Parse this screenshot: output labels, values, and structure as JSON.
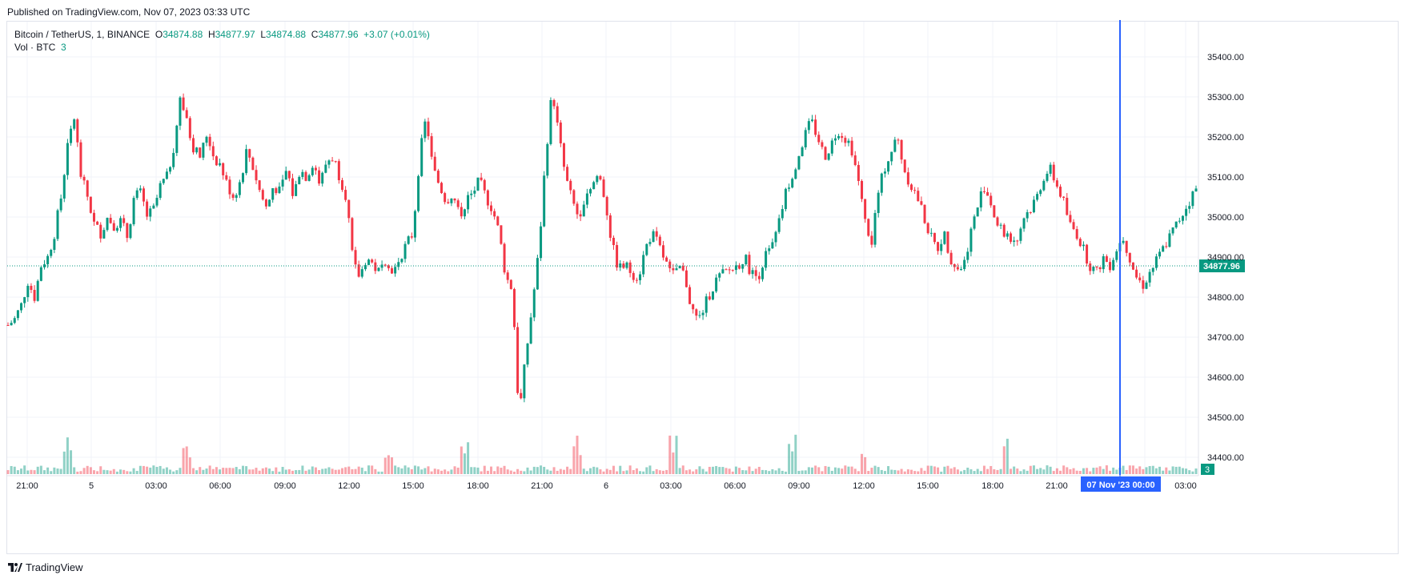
{
  "published": "Published on TradingView.com, Nov 07, 2023 03:33 UTC",
  "legend": {
    "symbol": "Bitcoin / TetherUS, 1, BINANCE",
    "o_label": "O",
    "o_value": "34874.88",
    "h_label": "H",
    "h_value": "34877.97",
    "l_label": "L",
    "l_value": "34874.88",
    "c_label": "C",
    "c_value": "34877.96",
    "change": "+3.07 (+0.01%)",
    "vol_label": "Vol · BTC",
    "vol_value": "3"
  },
  "footer": {
    "brand": "TradingView"
  },
  "colors": {
    "up": "#089981",
    "down": "#f23645",
    "crosshair": "#2962ff",
    "grid": "#f0f3fa"
  },
  "chart_data": {
    "type": "candlestick",
    "title": "Bitcoin / TetherUS, 1, BINANCE",
    "ylim": [
      34350,
      35450
    ],
    "y_ticks": [
      "35400.00",
      "35300.00",
      "35200.00",
      "35100.00",
      "35000.00",
      "34900.00",
      "34800.00",
      "34700.00",
      "34600.00",
      "34500.00",
      "34400.00"
    ],
    "x_ticks": [
      "21:00",
      "5",
      "03:00",
      "06:00",
      "09:00",
      "12:00",
      "15:00",
      "18:00",
      "21:00",
      "6",
      "03:00",
      "06:00",
      "09:00",
      "12:00",
      "15:00",
      "18:00",
      "21:00",
      "00:00",
      "03:00"
    ],
    "last_price": "34877.96",
    "last_volume": "3",
    "crosshair_label": "07 Nov '23   00:00",
    "price_path": [
      [
        0,
        34730
      ],
      [
        5,
        34745
      ],
      [
        8,
        34780
      ],
      [
        9,
        34840
      ],
      [
        10,
        34800
      ],
      [
        11,
        34880
      ],
      [
        12,
        34900
      ],
      [
        13,
        34960
      ],
      [
        14,
        35050
      ],
      [
        15,
        35180
      ],
      [
        16,
        35250
      ],
      [
        17,
        35100
      ],
      [
        18,
        35050
      ],
      [
        19,
        34980
      ],
      [
        20,
        34960
      ],
      [
        21,
        35000
      ],
      [
        22,
        34980
      ],
      [
        23,
        34990
      ],
      [
        24,
        34950
      ],
      [
        25,
        35050
      ],
      [
        26,
        35060
      ],
      [
        27,
        35000
      ],
      [
        28,
        35020
      ],
      [
        29,
        35080
      ],
      [
        30,
        35100
      ],
      [
        31,
        35180
      ],
      [
        32,
        35300
      ],
      [
        33,
        35230
      ],
      [
        34,
        35170
      ],
      [
        35,
        35150
      ],
      [
        36,
        35210
      ],
      [
        37,
        35150
      ],
      [
        38,
        35130
      ],
      [
        39,
        35080
      ],
      [
        40,
        35050
      ],
      [
        41,
        35090
      ],
      [
        42,
        35170
      ],
      [
        43,
        35120
      ],
      [
        44,
        35060
      ],
      [
        45,
        35020
      ],
      [
        46,
        35080
      ],
      [
        47,
        35060
      ],
      [
        48,
        35120
      ],
      [
        49,
        35050
      ],
      [
        50,
        35120
      ],
      [
        51,
        35100
      ],
      [
        52,
        35140
      ],
      [
        53,
        35080
      ],
      [
        54,
        35140
      ],
      [
        55,
        35150
      ],
      [
        56,
        35100
      ],
      [
        57,
        35050
      ],
      [
        58,
        34880
      ],
      [
        59,
        34850
      ],
      [
        60,
        34900
      ],
      [
        61,
        34880
      ],
      [
        62,
        34860
      ],
      [
        63,
        34900
      ],
      [
        64,
        34860
      ],
      [
        65,
        34900
      ],
      [
        66,
        34930
      ],
      [
        67,
        34960
      ],
      [
        68,
        35150
      ],
      [
        69,
        35250
      ],
      [
        70,
        35120
      ],
      [
        71,
        35080
      ],
      [
        72,
        35040
      ],
      [
        73,
        35060
      ],
      [
        74,
        35000
      ],
      [
        75,
        35040
      ],
      [
        76,
        35060
      ],
      [
        77,
        35090
      ],
      [
        78,
        35050
      ],
      [
        79,
        35020
      ],
      [
        80,
        34960
      ],
      [
        81,
        34850
      ],
      [
        82,
        34820
      ],
      [
        83,
        34500
      ],
      [
        84,
        34650
      ],
      [
        85,
        34780
      ],
      [
        86,
        34920
      ],
      [
        87,
        35150
      ],
      [
        88,
        35320
      ],
      [
        89,
        35200
      ],
      [
        90,
        35100
      ],
      [
        91,
        35040
      ],
      [
        92,
        35000
      ],
      [
        93,
        35060
      ],
      [
        94,
        35080
      ],
      [
        95,
        35110
      ],
      [
        96,
        35040
      ],
      [
        97,
        34930
      ],
      [
        98,
        34870
      ],
      [
        99,
        34880
      ],
      [
        100,
        34860
      ],
      [
        101,
        34850
      ],
      [
        102,
        34920
      ],
      [
        103,
        34960
      ],
      [
        104,
        34930
      ],
      [
        105,
        34890
      ],
      [
        106,
        34850
      ],
      [
        107,
        34880
      ],
      [
        108,
        34850
      ],
      [
        109,
        34770
      ],
      [
        110,
        34740
      ],
      [
        111,
        34780
      ],
      [
        112,
        34820
      ],
      [
        113,
        34850
      ],
      [
        114,
        34860
      ],
      [
        115,
        34870
      ],
      [
        116,
        34880
      ],
      [
        117,
        34900
      ],
      [
        118,
        34860
      ],
      [
        119,
        34850
      ],
      [
        120,
        34900
      ],
      [
        121,
        34920
      ],
      [
        122,
        34970
      ],
      [
        123,
        35050
      ],
      [
        124,
        35100
      ],
      [
        125,
        35150
      ],
      [
        126,
        35200
      ],
      [
        127,
        35240
      ],
      [
        128,
        35200
      ],
      [
        129,
        35150
      ],
      [
        130,
        35180
      ],
      [
        131,
        35220
      ],
      [
        132,
        35200
      ],
      [
        133,
        35180
      ],
      [
        134,
        35100
      ],
      [
        135,
        35000
      ],
      [
        136,
        34920
      ],
      [
        137,
        35050
      ],
      [
        138,
        35120
      ],
      [
        139,
        35160
      ],
      [
        140,
        35200
      ],
      [
        141,
        35120
      ],
      [
        142,
        35080
      ],
      [
        143,
        35050
      ],
      [
        144,
        35000
      ],
      [
        145,
        34950
      ],
      [
        146,
        34920
      ],
      [
        147,
        34960
      ],
      [
        148,
        34900
      ],
      [
        149,
        34870
      ],
      [
        150,
        34880
      ],
      [
        151,
        34960
      ],
      [
        152,
        35020
      ],
      [
        153,
        35080
      ],
      [
        154,
        35040
      ],
      [
        155,
        34980
      ],
      [
        156,
        34960
      ],
      [
        157,
        34950
      ],
      [
        158,
        34940
      ],
      [
        159,
        35000
      ],
      [
        160,
        35020
      ],
      [
        161,
        35050
      ],
      [
        162,
        35100
      ],
      [
        163,
        35120
      ],
      [
        164,
        35080
      ],
      [
        165,
        35040
      ],
      [
        166,
        34980
      ],
      [
        167,
        34960
      ],
      [
        168,
        34920
      ],
      [
        169,
        34880
      ],
      [
        170,
        34860
      ],
      [
        171,
        34900
      ],
      [
        172,
        34880
      ],
      [
        173,
        34920
      ],
      [
        174,
        34950
      ],
      [
        175,
        34900
      ],
      [
        176,
        34850
      ],
      [
        177,
        34830
      ],
      [
        178,
        34860
      ],
      [
        179,
        34890
      ]
    ]
  }
}
